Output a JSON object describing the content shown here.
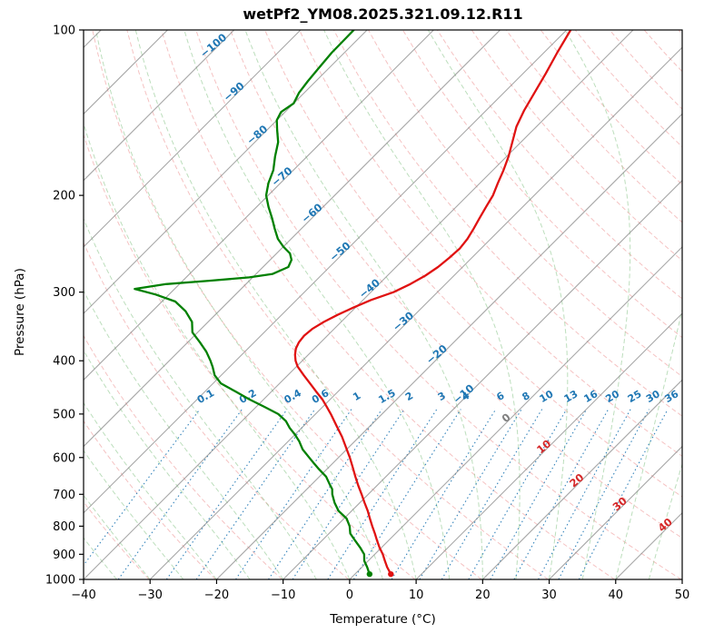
{
  "chart_data": {
    "type": "line",
    "variant": "skew-t-log-p-sounding",
    "title": "wetPf2_YM08.2025.321.09.12.R11",
    "xlabel": "Temperature (°C)",
    "ylabel": "Pressure (hPa)",
    "xlim": [
      -40,
      50
    ],
    "pressure_lim": [
      1000,
      100
    ],
    "y_scale": "log",
    "skew_degrees": 45,
    "grid": true,
    "legend_position": "none",
    "x_ticks": [
      -40,
      -30,
      -20,
      -10,
      0,
      10,
      20,
      30,
      40,
      50
    ],
    "y_ticks": [
      100,
      200,
      300,
      400,
      500,
      600,
      700,
      800,
      900,
      1000
    ],
    "gridlines": {
      "isotherms": {
        "min": -120,
        "max": 50,
        "step": 10,
        "color": "#8a8a8a",
        "style": "solid"
      },
      "dry_adiabats": {
        "theta_k_min": 233,
        "theta_k_max": 473,
        "step_k": 10,
        "color": "#ef9a9a",
        "style": "dashed"
      },
      "moist_adiabats": {
        "t0_c_min": -40,
        "t0_c_max": 45,
        "step_c": 5,
        "color": "#85c285",
        "style": "dashed"
      },
      "mixing_ratio": {
        "values_g_kg": [
          0.1,
          0.2,
          0.4,
          0.6,
          1,
          1.5,
          2,
          3,
          4,
          6,
          8,
          10,
          13,
          16,
          20,
          25,
          30,
          36
        ],
        "color": "#1f77b4",
        "style": "dotted",
        "top_pressure": 490,
        "label_pressure": 470
      }
    },
    "isotherm_labels": {
      "negative_color": "#1f77b4",
      "zero_color": "#7f7f7f",
      "positive_color": "#d62728",
      "entries": [
        {
          "t": -100,
          "pressure": 108
        },
        {
          "t": -90,
          "pressure": 131
        },
        {
          "t": -80,
          "pressure": 157
        },
        {
          "t": -70,
          "pressure": 187
        },
        {
          "t": -60,
          "pressure": 218
        },
        {
          "t": -50,
          "pressure": 256
        },
        {
          "t": -40,
          "pressure": 299
        },
        {
          "t": -30,
          "pressure": 343
        },
        {
          "t": -20,
          "pressure": 394
        },
        {
          "t": -10,
          "pressure": 465
        },
        {
          "t": 0,
          "pressure": 514
        },
        {
          "t": 10,
          "pressure": 580
        },
        {
          "t": 20,
          "pressure": 668
        },
        {
          "t": 30,
          "pressure": 737
        },
        {
          "t": 40,
          "pressure": 805
        }
      ]
    },
    "series": [
      {
        "name": "temperature",
        "color": "#e01212",
        "marker_at_surface": true,
        "points_p_t": [
          [
            978,
            5.4
          ],
          [
            950,
            3.8
          ],
          [
            925,
            2.5
          ],
          [
            900,
            1.2
          ],
          [
            875,
            -0.3
          ],
          [
            850,
            -1.7
          ],
          [
            825,
            -3.1
          ],
          [
            800,
            -4.6
          ],
          [
            775,
            -6.1
          ],
          [
            750,
            -7.6
          ],
          [
            725,
            -9.3
          ],
          [
            700,
            -11.0
          ],
          [
            675,
            -12.8
          ],
          [
            650,
            -14.6
          ],
          [
            625,
            -16.4
          ],
          [
            600,
            -18.3
          ],
          [
            575,
            -20.4
          ],
          [
            550,
            -22.6
          ],
          [
            525,
            -25.1
          ],
          [
            500,
            -27.7
          ],
          [
            485,
            -29.4
          ],
          [
            470,
            -31.2
          ],
          [
            455,
            -33.3
          ],
          [
            440,
            -35.4
          ],
          [
            425,
            -37.6
          ],
          [
            410,
            -39.8
          ],
          [
            400,
            -41.0
          ],
          [
            390,
            -42.0
          ],
          [
            380,
            -42.8
          ],
          [
            370,
            -43.3
          ],
          [
            360,
            -43.5
          ],
          [
            350,
            -43.3
          ],
          [
            340,
            -42.6
          ],
          [
            330,
            -41.6
          ],
          [
            320,
            -40.3
          ],
          [
            310,
            -38.8
          ],
          [
            300,
            -36.6
          ],
          [
            290,
            -35.3
          ],
          [
            280,
            -34.3
          ],
          [
            270,
            -33.7
          ],
          [
            260,
            -33.4
          ],
          [
            250,
            -33.2
          ],
          [
            240,
            -33.5
          ],
          [
            230,
            -34.1
          ],
          [
            220,
            -34.8
          ],
          [
            210,
            -35.5
          ],
          [
            200,
            -36.2
          ],
          [
            190,
            -37.3
          ],
          [
            180,
            -38.4
          ],
          [
            170,
            -39.7
          ],
          [
            160,
            -41.3
          ],
          [
            150,
            -43.0
          ],
          [
            140,
            -44.3
          ],
          [
            130,
            -45.4
          ],
          [
            120,
            -46.6
          ],
          [
            110,
            -48.0
          ],
          [
            100,
            -49.4
          ]
        ]
      },
      {
        "name": "dewpoint",
        "color": "#008000",
        "marker_at_surface": true,
        "points_p_t": [
          [
            978,
            2.2
          ],
          [
            950,
            0.8
          ],
          [
            925,
            -0.6
          ],
          [
            900,
            -1.6
          ],
          [
            875,
            -3.2
          ],
          [
            850,
            -5.0
          ],
          [
            825,
            -6.8
          ],
          [
            800,
            -8.0
          ],
          [
            775,
            -9.6
          ],
          [
            750,
            -12.0
          ],
          [
            725,
            -13.8
          ],
          [
            700,
            -15.4
          ],
          [
            685,
            -16.2
          ],
          [
            670,
            -17.4
          ],
          [
            650,
            -19.0
          ],
          [
            630,
            -21.2
          ],
          [
            615,
            -22.8
          ],
          [
            600,
            -24.4
          ],
          [
            580,
            -26.6
          ],
          [
            560,
            -28.4
          ],
          [
            545,
            -30.0
          ],
          [
            530,
            -31.8
          ],
          [
            515,
            -33.4
          ],
          [
            500,
            -35.6
          ],
          [
            485,
            -38.8
          ],
          [
            470,
            -42.2
          ],
          [
            455,
            -45.4
          ],
          [
            440,
            -48.8
          ],
          [
            425,
            -51.0
          ],
          [
            410,
            -52.6
          ],
          [
            400,
            -53.8
          ],
          [
            385,
            -55.8
          ],
          [
            370,
            -58.2
          ],
          [
            355,
            -60.8
          ],
          [
            340,
            -62.4
          ],
          [
            325,
            -65.0
          ],
          [
            312,
            -68.0
          ],
          [
            303,
            -72.0
          ],
          [
            296,
            -76.0
          ],
          [
            290,
            -72.0
          ],
          [
            286,
            -66.0
          ],
          [
            282,
            -60.5
          ],
          [
            278,
            -57.5
          ],
          [
            270,
            -56.2
          ],
          [
            262,
            -56.8
          ],
          [
            255,
            -58.0
          ],
          [
            248,
            -60.0
          ],
          [
            240,
            -62.0
          ],
          [
            230,
            -64.0
          ],
          [
            220,
            -66.0
          ],
          [
            210,
            -68.2
          ],
          [
            200,
            -70.3
          ],
          [
            190,
            -71.8
          ],
          [
            180,
            -73.0
          ],
          [
            170,
            -74.8
          ],
          [
            160,
            -76.5
          ],
          [
            152,
            -78.5
          ],
          [
            146,
            -80.0
          ],
          [
            141,
            -80.6
          ],
          [
            136,
            -80.0
          ],
          [
            130,
            -80.8
          ],
          [
            124,
            -81.2
          ],
          [
            118,
            -81.5
          ],
          [
            110,
            -81.9
          ],
          [
            100,
            -82.0
          ]
        ]
      }
    ]
  }
}
